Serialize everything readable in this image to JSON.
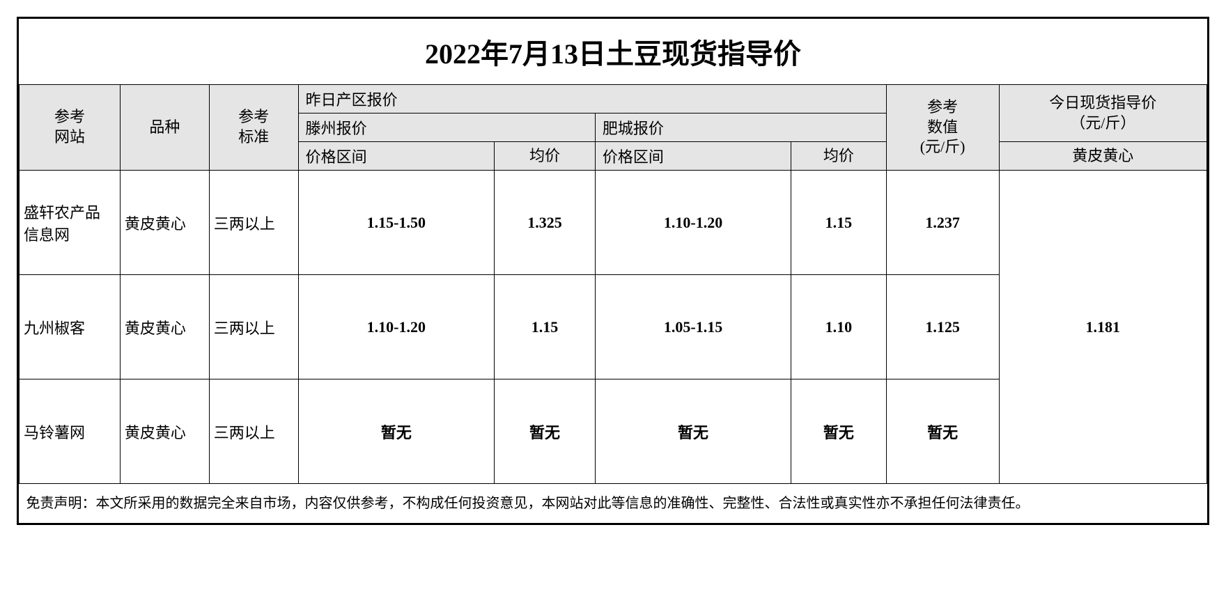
{
  "title": "2022年7月13日土豆现货指导价",
  "headers": {
    "site": "参考\n网站",
    "variety": "品种",
    "standard": "参考\n标准",
    "yesterday_region_quote": "昨日产区报价",
    "tengzhou_quote": "滕州报价",
    "feicheng_quote": "肥城报价",
    "price_range": "价格区间",
    "avg": "均价",
    "ref_value": "参考\n数值\n(元/斤)",
    "guide_price": "今日现货指导价\n（元/斤）",
    "guide_sub": "黄皮黄心"
  },
  "rows": [
    {
      "site": "盛轩农产品信息网",
      "variety": "黄皮黄心",
      "standard": "三两以上",
      "tz_range": "1.15-1.50",
      "tz_avg": "1.325",
      "fc_range": "1.10-1.20",
      "fc_avg": "1.15",
      "ref": "1.237"
    },
    {
      "site": "九州椒客",
      "variety": "黄皮黄心",
      "standard": "三两以上",
      "tz_range": "1.10-1.20",
      "tz_avg": "1.15",
      "fc_range": "1.05-1.15",
      "fc_avg": "1.10",
      "ref": "1.125"
    },
    {
      "site": "马铃薯网",
      "variety": "黄皮黄心",
      "standard": "三两以上",
      "tz_range": "暂无",
      "tz_avg": "暂无",
      "fc_range": "暂无",
      "fc_avg": "暂无",
      "ref": "暂无"
    }
  ],
  "guide_value": "1.181",
  "disclaimer": "免责声明：本文所采用的数据完全来自市场，内容仅供参考，不构成任何投资意见，本网站对此等信息的准确性、完整性、合法性或真实性亦不承担任何法律责任。",
  "style": {
    "type": "table",
    "header_bg": "#e5e5e5",
    "border_color": "#000000",
    "background_color": "#ffffff",
    "title_fontsize": 40,
    "header_fontsize": 22,
    "cell_fontsize": 22,
    "disclaimer_fontsize": 20,
    "outer_border_width": 3,
    "inner_border_width": 1,
    "data_font_weight": "bold",
    "font_family": "SimSun"
  }
}
